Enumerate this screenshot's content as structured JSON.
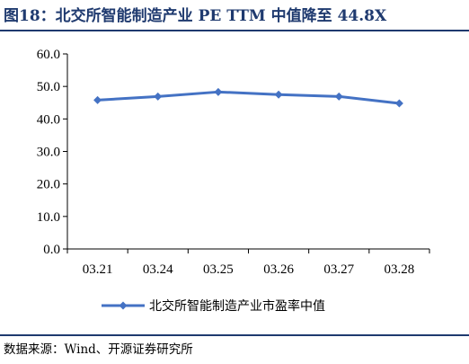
{
  "header": {
    "title": "图18：北交所智能制造产业 PE TTM 中值降至 44.8X"
  },
  "footer": {
    "source": "数据来源：Wind、开源证券研究所"
  },
  "chart_data": {
    "type": "line",
    "title": "",
    "xlabel": "",
    "ylabel": "",
    "categories": [
      "03.21",
      "03.24",
      "03.25",
      "03.26",
      "03.27",
      "03.28"
    ],
    "series": [
      {
        "name": "北交所智能制造产业市盈率中值",
        "values": [
          45.8,
          46.9,
          48.3,
          47.5,
          46.9,
          44.8
        ],
        "color": "#4472C4"
      }
    ],
    "ylim": [
      0,
      60
    ],
    "yticks": [
      0,
      10,
      20,
      30,
      40,
      50,
      60
    ],
    "ytick_labels": [
      "0.0",
      "10.0",
      "20.0",
      "30.0",
      "40.0",
      "50.0",
      "60.0"
    ],
    "grid": false,
    "legend_position": "bottom",
    "marker": "diamond"
  }
}
